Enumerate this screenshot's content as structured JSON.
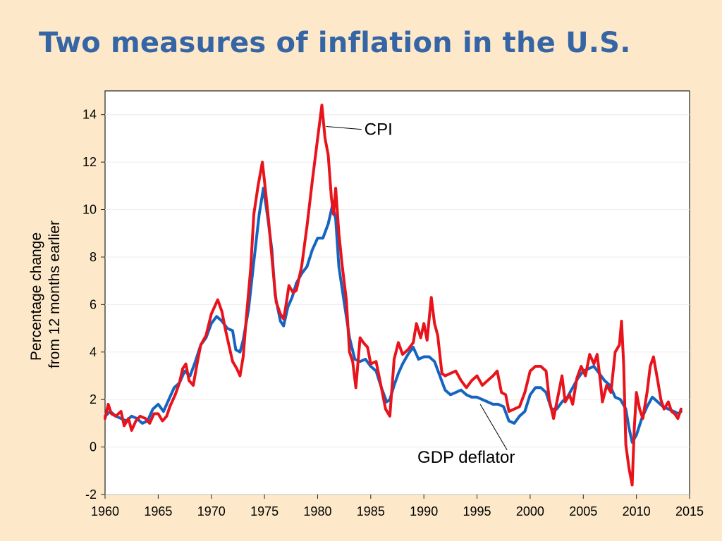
{
  "slide": {
    "title": "Two measures of inflation in the U.S."
  },
  "chart_data": {
    "type": "line",
    "xlim": [
      1960,
      2015
    ],
    "ylim": [
      -2,
      15
    ],
    "x_ticks": [
      1960,
      1965,
      1970,
      1975,
      1980,
      1985,
      1990,
      1995,
      2000,
      2005,
      2010,
      2015
    ],
    "y_ticks": [
      -2,
      0,
      2,
      4,
      6,
      8,
      10,
      12,
      14
    ],
    "ylabel_lines": [
      "Percentage change",
      "from 12 months earlier"
    ],
    "grid": "horizontal",
    "annotations": [
      {
        "text": "CPI",
        "target_x": 1980.8,
        "target_y": 13.5,
        "label_x": 1984.4,
        "label_y": 13.2
      },
      {
        "text": "GDP deflator",
        "target_x": 1995.3,
        "target_y": 1.8,
        "label_x": 1990.0,
        "label_y": -0.6
      }
    ],
    "series": [
      {
        "name": "CPI",
        "color": "#e8131b",
        "points": [
          [
            1960.0,
            1.2
          ],
          [
            1960.3,
            1.8
          ],
          [
            1960.6,
            1.4
          ],
          [
            1961.0,
            1.3
          ],
          [
            1961.5,
            1.5
          ],
          [
            1961.8,
            0.9
          ],
          [
            1962.2,
            1.2
          ],
          [
            1962.5,
            0.7
          ],
          [
            1962.9,
            1.1
          ],
          [
            1963.3,
            1.3
          ],
          [
            1963.8,
            1.2
          ],
          [
            1964.2,
            1.0
          ],
          [
            1964.6,
            1.4
          ],
          [
            1965.0,
            1.4
          ],
          [
            1965.4,
            1.1
          ],
          [
            1965.8,
            1.3
          ],
          [
            1966.1,
            1.7
          ],
          [
            1966.6,
            2.2
          ],
          [
            1967.0,
            2.7
          ],
          [
            1967.3,
            3.3
          ],
          [
            1967.6,
            3.5
          ],
          [
            1967.9,
            2.8
          ],
          [
            1968.3,
            2.6
          ],
          [
            1968.7,
            3.6
          ],
          [
            1969.0,
            4.3
          ],
          [
            1969.5,
            4.7
          ],
          [
            1970.0,
            5.6
          ],
          [
            1970.3,
            5.9
          ],
          [
            1970.6,
            6.2
          ],
          [
            1971.0,
            5.7
          ],
          [
            1971.3,
            5.0
          ],
          [
            1971.6,
            4.4
          ],
          [
            1972.0,
            3.6
          ],
          [
            1972.4,
            3.3
          ],
          [
            1972.7,
            3.0
          ],
          [
            1973.0,
            3.8
          ],
          [
            1973.3,
            5.5
          ],
          [
            1973.7,
            7.5
          ],
          [
            1974.0,
            9.8
          ],
          [
            1974.4,
            11.0
          ],
          [
            1974.8,
            12.0
          ],
          [
            1975.0,
            11.2
          ],
          [
            1975.4,
            9.5
          ],
          [
            1975.8,
            7.5
          ],
          [
            1976.1,
            6.1
          ],
          [
            1976.5,
            5.6
          ],
          [
            1976.8,
            5.4
          ],
          [
            1977.0,
            5.9
          ],
          [
            1977.3,
            6.8
          ],
          [
            1977.7,
            6.5
          ],
          [
            1978.0,
            6.6
          ],
          [
            1978.5,
            7.6
          ],
          [
            1979.0,
            9.3
          ],
          [
            1979.5,
            11.2
          ],
          [
            1980.0,
            13.0
          ],
          [
            1980.4,
            14.4
          ],
          [
            1980.7,
            13.0
          ],
          [
            1981.0,
            12.3
          ],
          [
            1981.3,
            10.5
          ],
          [
            1981.5,
            9.8
          ],
          [
            1981.7,
            10.9
          ],
          [
            1982.0,
            9.0
          ],
          [
            1982.3,
            7.7
          ],
          [
            1982.7,
            6.2
          ],
          [
            1983.0,
            4.0
          ],
          [
            1983.3,
            3.6
          ],
          [
            1983.6,
            2.5
          ],
          [
            1984.0,
            4.6
          ],
          [
            1984.3,
            4.4
          ],
          [
            1984.7,
            4.2
          ],
          [
            1985.0,
            3.5
          ],
          [
            1985.5,
            3.6
          ],
          [
            1986.0,
            2.5
          ],
          [
            1986.4,
            1.6
          ],
          [
            1986.8,
            1.3
          ],
          [
            1987.2,
            3.7
          ],
          [
            1987.6,
            4.4
          ],
          [
            1988.0,
            3.9
          ],
          [
            1988.5,
            4.1
          ],
          [
            1989.0,
            4.4
          ],
          [
            1989.3,
            5.2
          ],
          [
            1989.7,
            4.6
          ],
          [
            1990.0,
            5.2
          ],
          [
            1990.3,
            4.5
          ],
          [
            1990.7,
            6.3
          ],
          [
            1991.0,
            5.2
          ],
          [
            1991.3,
            4.7
          ],
          [
            1991.7,
            3.1
          ],
          [
            1992.0,
            3.0
          ],
          [
            1992.5,
            3.1
          ],
          [
            1993.0,
            3.2
          ],
          [
            1993.5,
            2.8
          ],
          [
            1994.0,
            2.5
          ],
          [
            1994.5,
            2.8
          ],
          [
            1995.0,
            3.0
          ],
          [
            1995.5,
            2.6
          ],
          [
            1996.0,
            2.8
          ],
          [
            1996.5,
            3.0
          ],
          [
            1996.9,
            3.2
          ],
          [
            1997.3,
            2.3
          ],
          [
            1997.7,
            2.2
          ],
          [
            1998.0,
            1.5
          ],
          [
            1998.5,
            1.6
          ],
          [
            1999.0,
            1.7
          ],
          [
            1999.5,
            2.3
          ],
          [
            2000.0,
            3.2
          ],
          [
            2000.5,
            3.4
          ],
          [
            2001.0,
            3.4
          ],
          [
            2001.5,
            3.2
          ],
          [
            2001.8,
            2.0
          ],
          [
            2002.2,
            1.2
          ],
          [
            2002.6,
            2.1
          ],
          [
            2003.0,
            3.0
          ],
          [
            2003.3,
            1.9
          ],
          [
            2003.7,
            2.2
          ],
          [
            2004.0,
            1.8
          ],
          [
            2004.4,
            2.9
          ],
          [
            2004.8,
            3.4
          ],
          [
            2005.2,
            3.0
          ],
          [
            2005.6,
            3.9
          ],
          [
            2006.0,
            3.5
          ],
          [
            2006.3,
            3.9
          ],
          [
            2006.6,
            2.8
          ],
          [
            2006.8,
            1.9
          ],
          [
            2007.2,
            2.6
          ],
          [
            2007.6,
            2.3
          ],
          [
            2008.0,
            4.0
          ],
          [
            2008.4,
            4.3
          ],
          [
            2008.6,
            5.3
          ],
          [
            2008.8,
            3.5
          ],
          [
            2009.0,
            0.1
          ],
          [
            2009.3,
            -0.9
          ],
          [
            2009.6,
            -1.6
          ],
          [
            2009.8,
            0.8
          ],
          [
            2010.0,
            2.3
          ],
          [
            2010.3,
            1.6
          ],
          [
            2010.6,
            1.2
          ],
          [
            2011.0,
            2.3
          ],
          [
            2011.3,
            3.4
          ],
          [
            2011.6,
            3.8
          ],
          [
            2012.0,
            2.8
          ],
          [
            2012.3,
            2.0
          ],
          [
            2012.6,
            1.6
          ],
          [
            2013.0,
            1.9
          ],
          [
            2013.3,
            1.5
          ],
          [
            2013.6,
            1.4
          ],
          [
            2013.9,
            1.2
          ],
          [
            2014.2,
            1.6
          ]
        ]
      },
      {
        "name": "GDP deflator",
        "color": "#1565c0",
        "points": [
          [
            1960.0,
            1.3
          ],
          [
            1960.5,
            1.5
          ],
          [
            1961.0,
            1.3
          ],
          [
            1961.5,
            1.2
          ],
          [
            1962.0,
            1.1
          ],
          [
            1962.5,
            1.3
          ],
          [
            1963.0,
            1.2
          ],
          [
            1963.5,
            1.0
          ],
          [
            1964.0,
            1.1
          ],
          [
            1964.5,
            1.6
          ],
          [
            1965.0,
            1.8
          ],
          [
            1965.5,
            1.5
          ],
          [
            1966.0,
            2.0
          ],
          [
            1966.5,
            2.5
          ],
          [
            1967.0,
            2.7
          ],
          [
            1967.5,
            3.2
          ],
          [
            1968.0,
            3.0
          ],
          [
            1968.5,
            3.6
          ],
          [
            1969.0,
            4.3
          ],
          [
            1969.5,
            4.6
          ],
          [
            1970.0,
            5.2
          ],
          [
            1970.5,
            5.5
          ],
          [
            1971.0,
            5.3
          ],
          [
            1971.5,
            5.0
          ],
          [
            1972.0,
            4.9
          ],
          [
            1972.3,
            4.1
          ],
          [
            1972.7,
            4.0
          ],
          [
            1973.0,
            4.5
          ],
          [
            1973.5,
            5.8
          ],
          [
            1974.0,
            7.8
          ],
          [
            1974.5,
            9.8
          ],
          [
            1974.9,
            10.9
          ],
          [
            1975.3,
            9.7
          ],
          [
            1975.7,
            8.3
          ],
          [
            1976.0,
            6.4
          ],
          [
            1976.5,
            5.3
          ],
          [
            1976.8,
            5.1
          ],
          [
            1977.2,
            5.9
          ],
          [
            1977.6,
            6.3
          ],
          [
            1978.0,
            6.9
          ],
          [
            1978.5,
            7.3
          ],
          [
            1979.0,
            7.6
          ],
          [
            1979.5,
            8.3
          ],
          [
            1980.0,
            8.8
          ],
          [
            1980.5,
            8.8
          ],
          [
            1981.0,
            9.4
          ],
          [
            1981.4,
            10.2
          ],
          [
            1981.7,
            9.6
          ],
          [
            1982.0,
            7.6
          ],
          [
            1982.5,
            6.1
          ],
          [
            1983.0,
            4.6
          ],
          [
            1983.5,
            3.7
          ],
          [
            1984.0,
            3.6
          ],
          [
            1984.5,
            3.7
          ],
          [
            1985.0,
            3.4
          ],
          [
            1985.5,
            3.2
          ],
          [
            1986.0,
            2.5
          ],
          [
            1986.5,
            1.9
          ],
          [
            1986.8,
            2.0
          ],
          [
            1987.2,
            2.6
          ],
          [
            1987.6,
            3.1
          ],
          [
            1988.0,
            3.5
          ],
          [
            1988.5,
            3.9
          ],
          [
            1989.0,
            4.2
          ],
          [
            1989.5,
            3.7
          ],
          [
            1990.0,
            3.8
          ],
          [
            1990.5,
            3.8
          ],
          [
            1991.0,
            3.6
          ],
          [
            1991.5,
            3.0
          ],
          [
            1992.0,
            2.4
          ],
          [
            1992.5,
            2.2
          ],
          [
            1993.0,
            2.3
          ],
          [
            1993.5,
            2.4
          ],
          [
            1994.0,
            2.2
          ],
          [
            1994.5,
            2.1
          ],
          [
            1995.0,
            2.1
          ],
          [
            1995.5,
            2.0
          ],
          [
            1996.0,
            1.9
          ],
          [
            1996.5,
            1.8
          ],
          [
            1997.0,
            1.8
          ],
          [
            1997.5,
            1.7
          ],
          [
            1998.0,
            1.1
          ],
          [
            1998.5,
            1.0
          ],
          [
            1999.0,
            1.3
          ],
          [
            1999.5,
            1.5
          ],
          [
            2000.0,
            2.2
          ],
          [
            2000.5,
            2.5
          ],
          [
            2001.0,
            2.5
          ],
          [
            2001.5,
            2.3
          ],
          [
            2002.0,
            1.6
          ],
          [
            2002.5,
            1.6
          ],
          [
            2003.0,
            1.9
          ],
          [
            2003.5,
            2.1
          ],
          [
            2004.0,
            2.5
          ],
          [
            2004.5,
            2.9
          ],
          [
            2005.0,
            3.2
          ],
          [
            2005.5,
            3.3
          ],
          [
            2006.0,
            3.4
          ],
          [
            2006.5,
            3.1
          ],
          [
            2007.0,
            2.8
          ],
          [
            2007.5,
            2.6
          ],
          [
            2008.0,
            2.1
          ],
          [
            2008.5,
            2.0
          ],
          [
            2009.0,
            1.6
          ],
          [
            2009.3,
            0.8
          ],
          [
            2009.6,
            0.2
          ],
          [
            2010.0,
            0.5
          ],
          [
            2010.5,
            1.2
          ],
          [
            2011.0,
            1.7
          ],
          [
            2011.5,
            2.1
          ],
          [
            2012.0,
            1.9
          ],
          [
            2012.5,
            1.7
          ],
          [
            2013.0,
            1.6
          ],
          [
            2013.5,
            1.5
          ],
          [
            2014.0,
            1.4
          ],
          [
            2014.2,
            1.5
          ]
        ]
      }
    ]
  }
}
